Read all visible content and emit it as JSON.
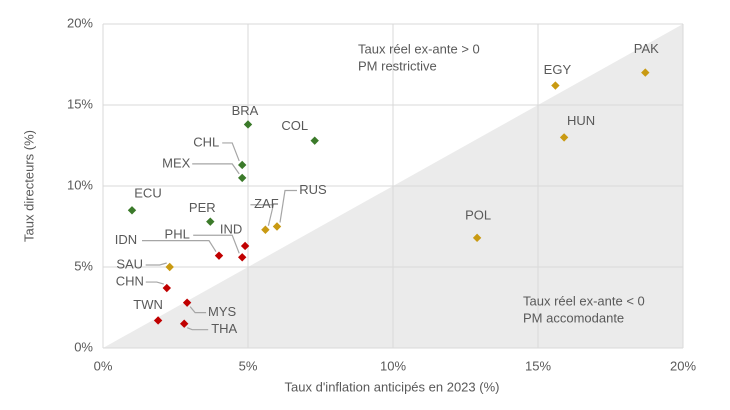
{
  "chart_data": {
    "type": "scatter",
    "x_label": "Taux d'inflation anticipés en 2023 (%)",
    "y_label": "Taux directeurs (%)",
    "xlim": [
      0,
      20
    ],
    "ylim": [
      0,
      20
    ],
    "xticks": [
      {
        "value": 0,
        "label": "0%"
      },
      {
        "value": 5,
        "label": "5%"
      },
      {
        "value": 10,
        "label": "10%"
      },
      {
        "value": 15,
        "label": "15%"
      },
      {
        "value": 20,
        "label": "20%"
      }
    ],
    "yticks": [
      {
        "value": 0,
        "label": "0%"
      },
      {
        "value": 5,
        "label": "5%"
      },
      {
        "value": 10,
        "label": "10%"
      },
      {
        "value": 15,
        "label": "15%"
      },
      {
        "value": 20,
        "label": "20%"
      }
    ],
    "grid": true,
    "annotations": [
      [
        "Taux réel ex-ante > 0",
        "PM restrictive"
      ],
      [
        "Taux réel ex-ante < 0",
        "PM accomodante"
      ]
    ],
    "points": [
      {
        "label": "BRA",
        "x": 5.0,
        "y": 13.8,
        "color": "#3b7a2a"
      },
      {
        "label": "COL",
        "x": 7.3,
        "y": 12.8,
        "color": "#3b7a2a"
      },
      {
        "label": "CHL",
        "x": 4.8,
        "y": 11.3,
        "color": "#3b7a2a"
      },
      {
        "label": "MEX",
        "x": 4.8,
        "y": 10.5,
        "color": "#3b7a2a"
      },
      {
        "label": "ECU",
        "x": 1.0,
        "y": 8.5,
        "color": "#3b7a2a"
      },
      {
        "label": "PER",
        "x": 3.7,
        "y": 7.8,
        "color": "#3b7a2a"
      },
      {
        "label": "IND",
        "x": 4.9,
        "y": 6.3,
        "color": "#c00000"
      },
      {
        "label": "PHL",
        "x": 4.8,
        "y": 5.6,
        "color": "#c00000"
      },
      {
        "label": "IDN",
        "x": 4.0,
        "y": 5.7,
        "color": "#c00000"
      },
      {
        "label": "CHN",
        "x": 2.2,
        "y": 3.7,
        "color": "#c00000"
      },
      {
        "label": "MYS",
        "x": 2.9,
        "y": 2.8,
        "color": "#c00000"
      },
      {
        "label": "TWN",
        "x": 1.9,
        "y": 1.7,
        "color": "#c00000"
      },
      {
        "label": "THA",
        "x": 2.8,
        "y": 1.5,
        "color": "#c00000"
      },
      {
        "label": "SAU",
        "x": 2.3,
        "y": 5.0,
        "color": "#c99a12"
      },
      {
        "label": "ZAF",
        "x": 5.6,
        "y": 7.3,
        "color": "#c99a12"
      },
      {
        "label": "RUS",
        "x": 6.0,
        "y": 7.5,
        "color": "#c99a12"
      },
      {
        "label": "POL",
        "x": 12.9,
        "y": 6.8,
        "color": "#c99a12"
      },
      {
        "label": "HUN",
        "x": 15.9,
        "y": 13.0,
        "color": "#c99a12"
      },
      {
        "label": "EGY",
        "x": 15.6,
        "y": 16.2,
        "color": "#c99a12"
      },
      {
        "label": "PAK",
        "x": 18.7,
        "y": 17.0,
        "color": "#c99a12"
      }
    ]
  }
}
